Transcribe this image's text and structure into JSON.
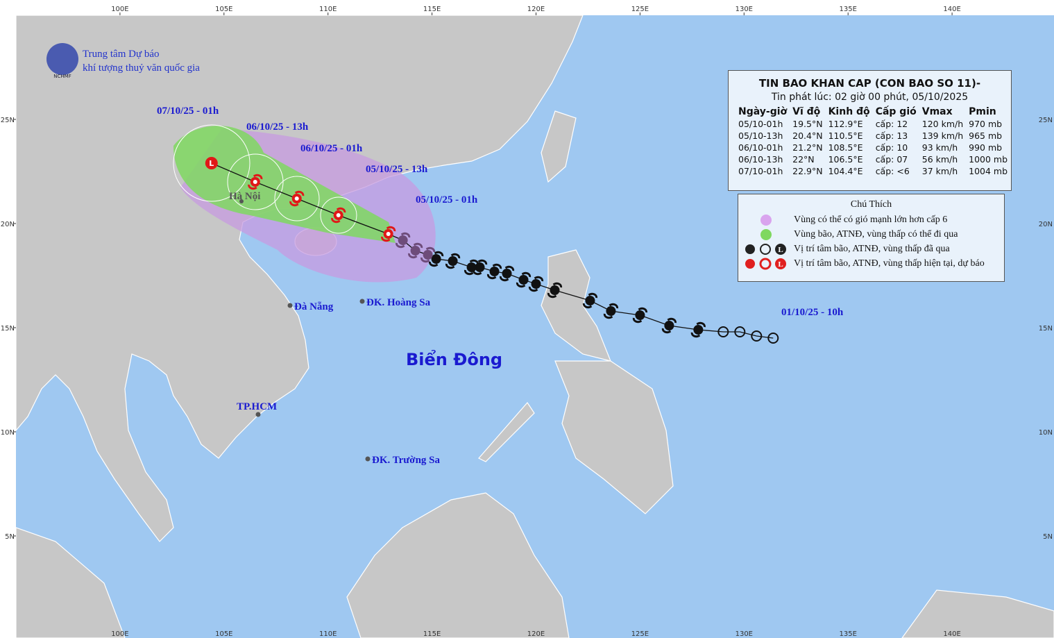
{
  "logo": {
    "abbr": "NCHMF",
    "line1": "Trung tâm Dự báo",
    "line2": "khí tượng thuỷ văn quốc gia"
  },
  "map": {
    "lonlim": [
      95,
      144.9
    ],
    "latlim": [
      0.1,
      30
    ],
    "lon_ticks": [
      {
        "value": 100,
        "label": "100E"
      },
      {
        "value": 105,
        "label": "105E"
      },
      {
        "value": 110,
        "label": "110E"
      },
      {
        "value": 115,
        "label": "115E"
      },
      {
        "value": 120,
        "label": "120E"
      },
      {
        "value": 125,
        "label": "125E"
      },
      {
        "value": 130,
        "label": "130E"
      },
      {
        "value": 135,
        "label": "135E"
      },
      {
        "value": 140,
        "label": "140E"
      }
    ],
    "lat_ticks": [
      {
        "value": 5,
        "label": "5N"
      },
      {
        "value": 10,
        "label": "10N"
      },
      {
        "value": 15,
        "label": "15N"
      },
      {
        "value": 20,
        "label": "20N"
      },
      {
        "value": 25,
        "label": "25N"
      }
    ],
    "sea_label": "Biển Đông",
    "places": [
      "Hà Nội",
      "Đà Nẵng",
      "ĐK. Hoàng Sa",
      "TP.HCM",
      "ĐK. Trường Sa"
    ]
  },
  "track": {
    "past": {
      "lon": [
        131.4,
        130.6,
        129.8,
        129.0,
        127.8,
        126.4,
        125.0,
        123.6,
        122.6,
        120.9,
        120.0,
        119.4,
        118.6,
        118.0,
        117.3,
        116.9,
        116.0,
        115.2,
        114.8,
        114.2,
        113.6
      ],
      "lat": [
        14.5,
        14.6,
        14.8,
        14.8,
        14.9,
        15.1,
        15.6,
        15.8,
        16.3,
        16.8,
        17.1,
        17.3,
        17.6,
        17.7,
        17.9,
        17.9,
        18.2,
        18.3,
        18.5,
        18.7,
        19.2
      ],
      "symbol": [
        "depression",
        "depression",
        "depression",
        "depression",
        "storm",
        "storm",
        "storm",
        "storm",
        "storm",
        "storm",
        "storm",
        "storm",
        "storm",
        "storm",
        "storm",
        "storm",
        "storm",
        "storm",
        "storm",
        "storm",
        "storm"
      ]
    },
    "forecast": {
      "lon": [
        112.9,
        110.5,
        108.5,
        106.5,
        104.4
      ],
      "lat": [
        19.5,
        20.4,
        21.2,
        22,
        22.9
      ],
      "symbol": [
        "storm",
        "storm",
        "storm",
        "storm",
        "low"
      ]
    },
    "time_labels": [
      "07/10/25 - 01h",
      "06/10/25 - 13h",
      "06/10/25 - 01h",
      "05/10/25 - 13h",
      "05/10/25 - 01h",
      "01/10/25 - 10h"
    ]
  },
  "bulletin": {
    "title": "TIN BAO KHAN CAP (CON BAO SO 11)-",
    "issued": "Tin phát lúc: 02 giờ 00 phút, 05/10/2025",
    "columns": [
      "Ngày-giờ",
      "Vĩ độ",
      "Kinh độ",
      "Cấp gió",
      "Vmax",
      "Pmin"
    ],
    "rows": [
      [
        "05/10-01h",
        "19.5°N",
        "112.9°E",
        "cấp: 12",
        "120 km/h",
        "970 mb"
      ],
      [
        "05/10-13h",
        "20.4°N",
        "110.5°E",
        "cấp: 13",
        "139 km/h",
        "965 mb"
      ],
      [
        "06/10-01h",
        "21.2°N",
        "108.5°E",
        "cấp: 10",
        "93 km/h",
        "990 mb"
      ],
      [
        "06/10-13h",
        "22°N",
        "106.5°E",
        "cấp: 07",
        "56 km/h",
        "1000 mb"
      ],
      [
        "07/10-01h",
        "22.9°N",
        "104.4°E",
        "cấp: <6",
        "37 km/h",
        "1004 mb"
      ]
    ]
  },
  "legend": {
    "title": "Chú Thích",
    "low_symbol": "L",
    "items": [
      "Vùng có thể có gió mạnh lớn hơn cấp 6",
      "Vùng bão, ATNĐ, vùng thấp có thể đi qua",
      "Vị trí tâm bão, ATNĐ, vùng thấp đã qua",
      "Vị trí tâm bão, ATNĐ, vùng thấp hiện tại, dự báo"
    ]
  }
}
